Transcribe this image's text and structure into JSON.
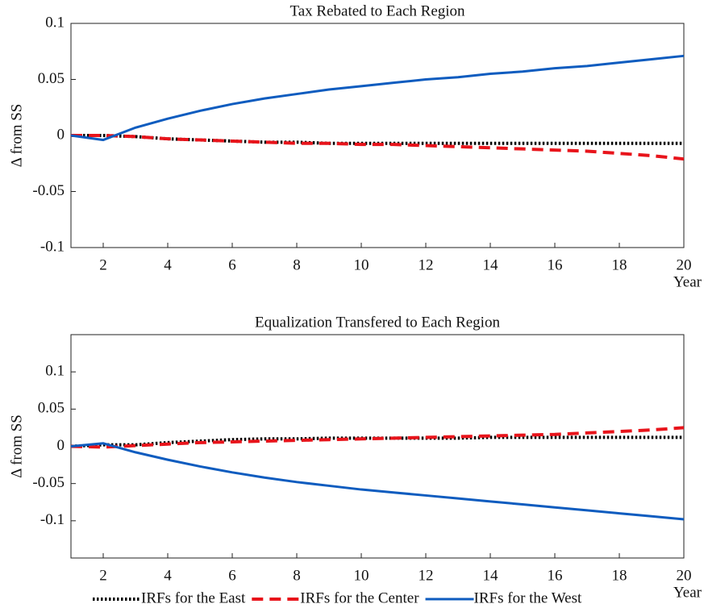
{
  "chart_data": [
    {
      "type": "line",
      "title": "Tax Rebated to Each Region",
      "y_label": "Δ from SS",
      "x_label": "Year",
      "x": [
        1,
        2,
        3,
        4,
        5,
        6,
        7,
        8,
        9,
        10,
        11,
        12,
        13,
        14,
        15,
        16,
        17,
        18,
        19,
        20
      ],
      "xlim": [
        1,
        20
      ],
      "xticks": [
        2,
        4,
        6,
        8,
        10,
        12,
        14,
        16,
        18,
        20
      ],
      "ylim": [
        -0.1,
        0.1
      ],
      "yticks": [
        -0.1,
        -0.05,
        0,
        0.05,
        0.1
      ],
      "series": [
        {
          "name": "IRFs for the East",
          "color": "#000000",
          "linestyle": "dotted",
          "values": [
            0,
            0,
            -0.001,
            -0.003,
            -0.004,
            -0.005,
            -0.006,
            -0.006,
            -0.007,
            -0.007,
            -0.007,
            -0.007,
            -0.007,
            -0.007,
            -0.007,
            -0.007,
            -0.007,
            -0.007,
            -0.007,
            -0.007
          ]
        },
        {
          "name": "IRFs for the Center",
          "color": "#e8141b",
          "linestyle": "dashed",
          "values": [
            0,
            0,
            -0.001,
            -0.003,
            -0.004,
            -0.005,
            -0.006,
            -0.007,
            -0.007,
            -0.008,
            -0.008,
            -0.009,
            -0.01,
            -0.011,
            -0.012,
            -0.013,
            -0.014,
            -0.016,
            -0.018,
            -0.021
          ]
        },
        {
          "name": "IRFs for the West",
          "color": "#0e5cbf",
          "linestyle": "solid",
          "values": [
            0,
            -0.004,
            0.007,
            0.015,
            0.022,
            0.028,
            0.033,
            0.037,
            0.041,
            0.044,
            0.047,
            0.05,
            0.052,
            0.055,
            0.057,
            0.06,
            0.062,
            0.065,
            0.068,
            0.071
          ]
        }
      ]
    },
    {
      "type": "line",
      "title": "Equalization Transfered to Each Region",
      "y_label": "Δ from SS",
      "x_label": "Year",
      "x": [
        1,
        2,
        3,
        4,
        5,
        6,
        7,
        8,
        9,
        10,
        11,
        12,
        13,
        14,
        15,
        16,
        17,
        18,
        19,
        20
      ],
      "xlim": [
        1,
        20
      ],
      "xticks": [
        2,
        4,
        6,
        8,
        10,
        12,
        14,
        16,
        18,
        20
      ],
      "ylim": [
        -0.15,
        0.15
      ],
      "yticks": [
        -0.1,
        -0.05,
        0,
        0.05,
        0.1
      ],
      "series": [
        {
          "name": "IRFs for the East",
          "color": "#000000",
          "linestyle": "dotted",
          "values": [
            0,
            0.002,
            0.002,
            0.005,
            0.007,
            0.009,
            0.01,
            0.01,
            0.011,
            0.011,
            0.011,
            0.011,
            0.011,
            0.012,
            0.012,
            0.012,
            0.012,
            0.012,
            0.012,
            0.012
          ]
        },
        {
          "name": "IRFs for the Center",
          "color": "#e8141b",
          "linestyle": "dashed",
          "values": [
            0,
            -0.001,
            0.001,
            0.003,
            0.005,
            0.006,
            0.007,
            0.008,
            0.009,
            0.01,
            0.011,
            0.012,
            0.013,
            0.014,
            0.015,
            0.016,
            0.018,
            0.02,
            0.022,
            0.025
          ]
        },
        {
          "name": "IRFs for the West",
          "color": "#0e5cbf",
          "linestyle": "solid",
          "values": [
            0,
            0.004,
            -0.008,
            -0.018,
            -0.027,
            -0.035,
            -0.042,
            -0.048,
            -0.053,
            -0.058,
            -0.062,
            -0.066,
            -0.07,
            -0.074,
            -0.078,
            -0.082,
            -0.086,
            -0.09,
            -0.094,
            -0.098
          ]
        }
      ]
    }
  ]
}
